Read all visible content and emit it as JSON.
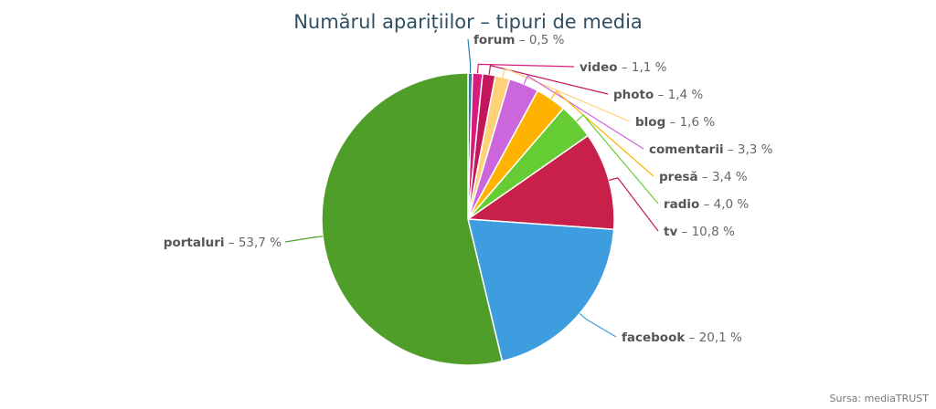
{
  "chart_data": {
    "type": "pie",
    "title": "Numărul aparițiilor – tipuri de media",
    "slices": [
      {
        "label": "forum",
        "value": 0.5,
        "display": "0,5 %",
        "color": "#2a7fb8"
      },
      {
        "label": "video",
        "value": 1.1,
        "display": "1,1 %",
        "color": "#d81b7c"
      },
      {
        "label": "photo",
        "value": 1.4,
        "display": "1,4 %",
        "color": "#c2185b"
      },
      {
        "label": "blog",
        "value": 1.6,
        "display": "1,6 %",
        "color": "#ffd27a"
      },
      {
        "label": "comentarii",
        "value": 3.3,
        "display": "3,3 %",
        "color": "#cc66dd"
      },
      {
        "label": "presă",
        "value": 3.4,
        "display": "3,4 %",
        "color": "#ffb300"
      },
      {
        "label": "radio",
        "value": 4.0,
        "display": "4,0 %",
        "color": "#66cc33"
      },
      {
        "label": "tv",
        "value": 10.8,
        "display": "10,8 %",
        "color": "#c9204a"
      },
      {
        "label": "facebook",
        "value": 20.1,
        "display": "20,1 %",
        "color": "#3d9ddf"
      },
      {
        "label": "portaluri",
        "value": 53.7,
        "display": "53,7 %",
        "color": "#4f9e2a"
      }
    ],
    "legend": "none"
  },
  "credit": "Sursa: mediaTRUST"
}
